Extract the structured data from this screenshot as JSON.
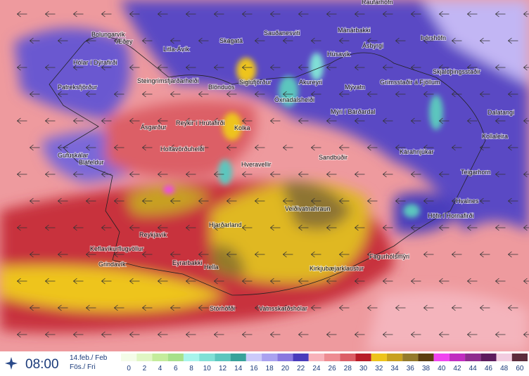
{
  "header": {
    "time": "08:00",
    "date": "14.feb./ Feb",
    "day": "Fös./ Fri"
  },
  "legend": [
    {
      "value": 0,
      "color": "#f4fce8"
    },
    {
      "value": 2,
      "color": "#e0f6c4"
    },
    {
      "value": 4,
      "color": "#c4ec9c"
    },
    {
      "value": 6,
      "color": "#a6e08a"
    },
    {
      "value": 8,
      "color": "#a8f4ec"
    },
    {
      "value": 10,
      "color": "#80e0d6"
    },
    {
      "value": 12,
      "color": "#5cc6be"
    },
    {
      "value": 14,
      "color": "#38a29a"
    },
    {
      "value": 16,
      "color": "#cccafa"
    },
    {
      "value": 18,
      "color": "#aaa2f0"
    },
    {
      "value": 20,
      "color": "#8a78e0"
    },
    {
      "value": 22,
      "color": "#4a3cbc"
    },
    {
      "value": 24,
      "color": "#f8b2ba"
    },
    {
      "value": 26,
      "color": "#ee8c92"
    },
    {
      "value": 28,
      "color": "#dc5e66"
    },
    {
      "value": 30,
      "color": "#b81c28"
    },
    {
      "value": 32,
      "color": "#eec41c"
    },
    {
      "value": 34,
      "color": "#c8a020"
    },
    {
      "value": 36,
      "color": "#947a2c"
    },
    {
      "value": 38,
      "color": "#5c3e10"
    },
    {
      "value": 40,
      "color": "#f044f0"
    },
    {
      "value": 42,
      "color": "#c02cc0"
    },
    {
      "value": 44,
      "color": "#8e2c8e"
    },
    {
      "value": 46,
      "color": "#5e1c5e"
    },
    {
      "value": 48,
      "color": "#f2cce0"
    },
    {
      "value": 60,
      "color": "#5c2c3c"
    }
  ],
  "places": [
    "Raufarhöfn",
    "Bolungarvík",
    "Æðey",
    "Hólar í Dýrafirði",
    "Litla-Ávík",
    "Skagatá",
    "Sauðanesviti",
    "Mánárbakki",
    "Ásbyrgi",
    "Þórshöfn",
    "Patreksfjörður",
    "Steingrímsfjarðarheiði",
    "Blönduós",
    "Siglufjörður",
    "Akureyri",
    "Húsavík",
    "Mývatn",
    "Grímsstaðir á Fjöllum",
    "Skjaldþingsstaðir",
    "Öxnadalsheiði",
    "Mýri í Bárðardal",
    "Dalatangi",
    "Kollaleira",
    "Ásgarður",
    "Reykir í Hrútafirði",
    "Kolka",
    "Hveravellir",
    "Holtavörðuheiði",
    "Gufuskálar",
    "Bláfeldur",
    "Sandbúðir",
    "Kárahnjúkar",
    "Teigarhorn",
    "Veiðivatnahraun",
    "Hvalnes",
    "Höfn í Hornafirði",
    "Hjarðarland",
    "Reykjavík",
    "Keflavíkurflugvöllur",
    "Grindavík",
    "Eyrarbakki",
    "Hella",
    "Kirkjubæjarklaustur",
    "Fagurhólsmýri",
    "Stórhöfði",
    "Vatnsskarðshólar"
  ]
}
